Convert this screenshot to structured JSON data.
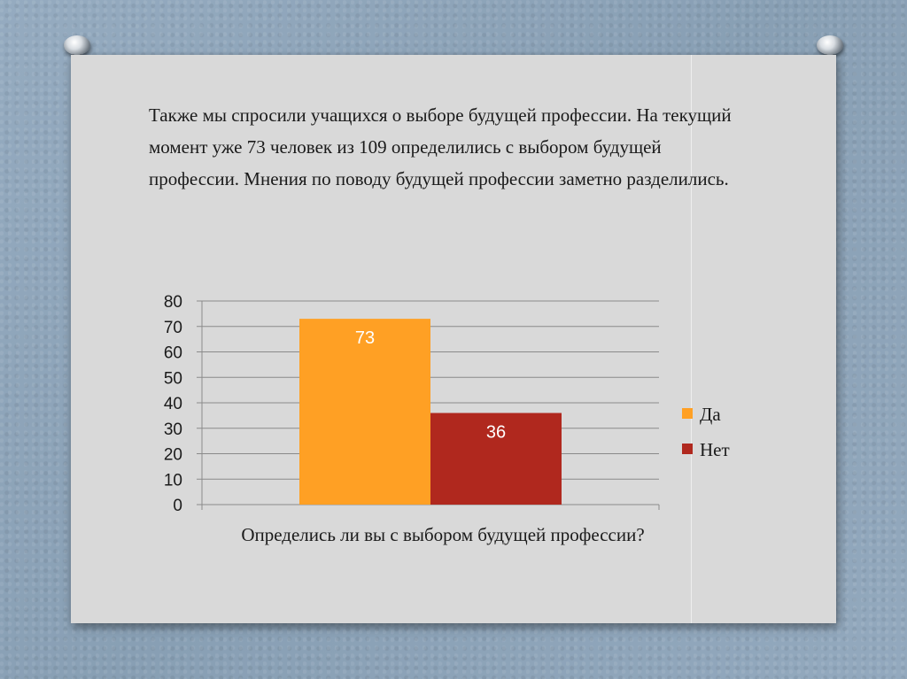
{
  "slide": {
    "intro_text": "Также мы спросили учащихся о выборе будущей профессии. На текущий момент уже 73 человек из 109 определились с выбором будущей профессии. Мнения по поводу будущей профессии заметно разделились."
  },
  "chart_data": {
    "type": "bar",
    "xlabel": "Определись ли вы с выбором будущей профессии?",
    "ylabel": "",
    "ylim": [
      0,
      80
    ],
    "y_ticks": [
      0,
      10,
      20,
      30,
      40,
      50,
      60,
      70,
      80
    ],
    "grid": true,
    "legend_position": "right",
    "series": [
      {
        "name": "Да",
        "value": 73,
        "label": "73",
        "color": "#ffa024"
      },
      {
        "name": "Нет",
        "value": 36,
        "label": "36",
        "color": "#b0281e"
      }
    ]
  },
  "colors": {
    "background": "#8fa6bb",
    "slide": "#d9d9d9",
    "bar_label": "#ffffff"
  }
}
